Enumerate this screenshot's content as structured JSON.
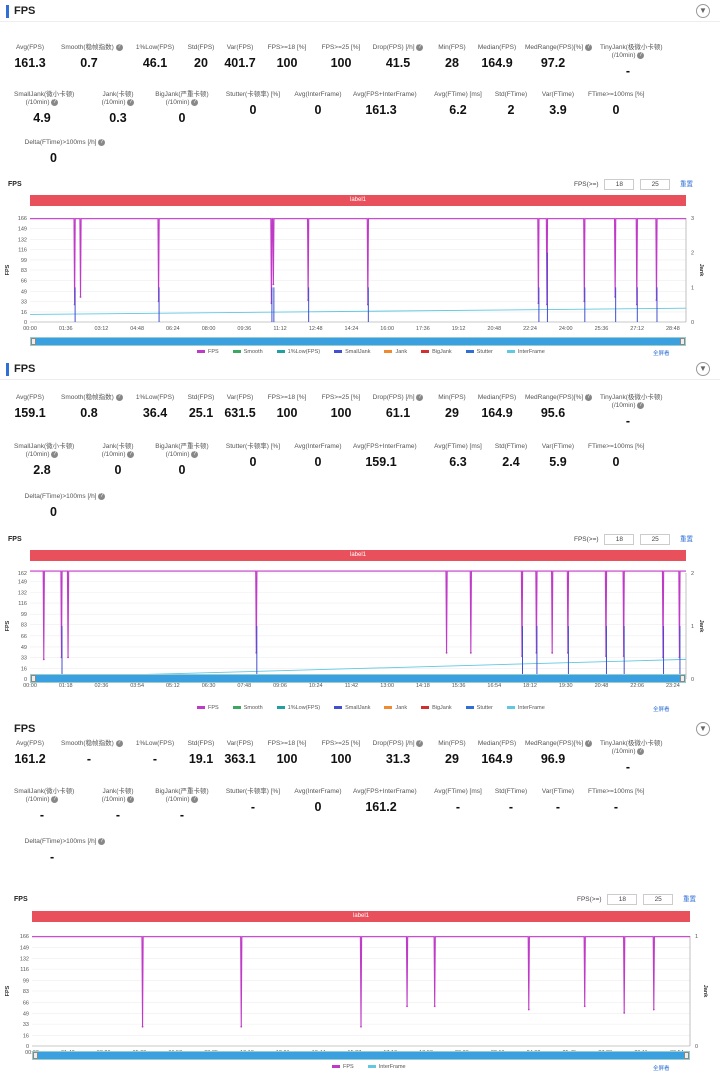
{
  "panels": [
    {
      "title": "FPS",
      "metrics_row1": [
        {
          "label": "Avg(FPS)",
          "value": "161.3"
        },
        {
          "label": "Smooth(稳帧指数)",
          "value": "0.7",
          "help": true
        },
        {
          "label": "1%Low(FPS)",
          "value": "46.1"
        },
        {
          "label": "Std(FPS)",
          "value": "20"
        },
        {
          "label": "Var(FPS)",
          "value": "401.7"
        },
        {
          "label": "FPS>=18 [%]",
          "value": "100"
        },
        {
          "label": "FPS>=25 [%]",
          "value": "100"
        },
        {
          "label": "Drop(FPS) [/h]",
          "value": "41.5",
          "help": true
        },
        {
          "label": "Min(FPS)",
          "value": "28"
        },
        {
          "label": "Median(FPS)",
          "value": "164.9"
        },
        {
          "label": "MedRange(FPS)[%]",
          "value": "97.2",
          "help": true
        },
        {
          "label": "TinyJank(极微小卡顿)\n(/10min)",
          "value": "-",
          "help": true
        }
      ],
      "metrics_row2": [
        {
          "label": "SmallJank(微小卡顿)\n(/10min)",
          "value": "4.9",
          "help": true
        },
        {
          "label": "Jank(卡顿)\n(/10min)",
          "value": "0.3",
          "help": true
        },
        {
          "label": "BigJank(严重卡顿)\n(/10min)",
          "value": "0",
          "help": true
        },
        {
          "label": "Stutter(卡顿率) [%]",
          "value": "0"
        },
        {
          "label": "Avg(InterFrame)",
          "value": "0"
        },
        {
          "label": "Avg(FPS+InterFrame)",
          "value": "161.3"
        },
        {
          "label": "Avg(FTime) [ms]",
          "value": "6.2"
        },
        {
          "label": "Std(FTime)",
          "value": "2"
        },
        {
          "label": "Var(FTime)",
          "value": "3.9"
        },
        {
          "label": "FTime>=100ms [%]",
          "value": "0"
        }
      ],
      "metrics_row3": [
        {
          "label": "Delta(FTime)>100ms [/h]",
          "value": "0",
          "help": true
        }
      ],
      "chart_title": "FPS",
      "threshold_label": "FPS(>=)",
      "threshold_values": [
        "18",
        "25"
      ],
      "reset_label": "重置",
      "band_label": "label1",
      "zoom_label": "全屏看",
      "legend": [
        "FPS",
        "Smooth",
        "1%Low(FPS)",
        "SmallJank",
        "Jank",
        "BigJank",
        "Stutter",
        "InterFrame"
      ]
    },
    {
      "title": "FPS",
      "metrics_row1": [
        {
          "label": "Avg(FPS)",
          "value": "159.1"
        },
        {
          "label": "Smooth(稳帧指数)",
          "value": "0.8",
          "help": true
        },
        {
          "label": "1%Low(FPS)",
          "value": "36.4"
        },
        {
          "label": "Std(FPS)",
          "value": "25.1"
        },
        {
          "label": "Var(FPS)",
          "value": "631.5"
        },
        {
          "label": "FPS>=18 [%]",
          "value": "100"
        },
        {
          "label": "FPS>=25 [%]",
          "value": "100"
        },
        {
          "label": "Drop(FPS) [/h]",
          "value": "61.1",
          "help": true
        },
        {
          "label": "Min(FPS)",
          "value": "29"
        },
        {
          "label": "Median(FPS)",
          "value": "164.9"
        },
        {
          "label": "MedRange(FPS)[%]",
          "value": "95.6",
          "help": true
        },
        {
          "label": "TinyJank(极微小卡顿)\n(/10min)",
          "value": "-",
          "help": true
        }
      ],
      "metrics_row2": [
        {
          "label": "SmallJank(微小卡顿)\n(/10min)",
          "value": "2.8",
          "help": true
        },
        {
          "label": "Jank(卡顿)\n(/10min)",
          "value": "0",
          "help": true
        },
        {
          "label": "BigJank(严重卡顿)\n(/10min)",
          "value": "0",
          "help": true
        },
        {
          "label": "Stutter(卡顿率) [%]",
          "value": "0"
        },
        {
          "label": "Avg(InterFrame)",
          "value": "0"
        },
        {
          "label": "Avg(FPS+InterFrame)",
          "value": "159.1"
        },
        {
          "label": "Avg(FTime) [ms]",
          "value": "6.3"
        },
        {
          "label": "Std(FTime)",
          "value": "2.4"
        },
        {
          "label": "Var(FTime)",
          "value": "5.9"
        },
        {
          "label": "FTime>=100ms [%]",
          "value": "0"
        }
      ],
      "metrics_row3": [
        {
          "label": "Delta(FTime)>100ms [/h]",
          "value": "0",
          "help": true
        }
      ],
      "chart_title": "FPS",
      "threshold_label": "FPS(>=)",
      "threshold_values": [
        "18",
        "25"
      ],
      "reset_label": "重置",
      "band_label": "label1",
      "zoom_label": "全屏看",
      "legend": [
        "FPS",
        "Smooth",
        "1%Low(FPS)",
        "SmallJank",
        "Jank",
        "BigJank",
        "Stutter",
        "InterFrame"
      ]
    },
    {
      "title": "FPS",
      "metrics_row1": [
        {
          "label": "Avg(FPS)",
          "value": "161.2"
        },
        {
          "label": "Smooth(稳帧指数)",
          "value": "-",
          "help": true
        },
        {
          "label": "1%Low(FPS)",
          "value": "-"
        },
        {
          "label": "Std(FPS)",
          "value": "19.1"
        },
        {
          "label": "Var(FPS)",
          "value": "363.1"
        },
        {
          "label": "FPS>=18 [%]",
          "value": "100"
        },
        {
          "label": "FPS>=25 [%]",
          "value": "100"
        },
        {
          "label": "Drop(FPS) [/h]",
          "value": "31.3",
          "help": true
        },
        {
          "label": "Min(FPS)",
          "value": "29"
        },
        {
          "label": "Median(FPS)",
          "value": "164.9"
        },
        {
          "label": "MedRange(FPS)[%]",
          "value": "96.9",
          "help": true
        },
        {
          "label": "TinyJank(极微小卡顿)\n(/10min)",
          "value": "-",
          "help": true
        }
      ],
      "metrics_row2": [
        {
          "label": "SmallJank(微小卡顿)\n(/10min)",
          "value": "-",
          "help": true
        },
        {
          "label": "Jank(卡顿)\n(/10min)",
          "value": "-",
          "help": true
        },
        {
          "label": "BigJank(严重卡顿)\n(/10min)",
          "value": "-",
          "help": true
        },
        {
          "label": "Stutter(卡顿率) [%]",
          "value": "-"
        },
        {
          "label": "Avg(InterFrame)",
          "value": "0"
        },
        {
          "label": "Avg(FPS+InterFrame)",
          "value": "161.2"
        },
        {
          "label": "Avg(FTime) [ms]",
          "value": "-"
        },
        {
          "label": "Std(FTime)",
          "value": "-"
        },
        {
          "label": "Var(FTime)",
          "value": "-"
        },
        {
          "label": "FTime>=100ms [%]",
          "value": "-"
        }
      ],
      "metrics_row3": [
        {
          "label": "Delta(FTime)>100ms [/h]",
          "value": "-",
          "help": true
        }
      ],
      "chart_title": "FPS",
      "threshold_label": "FPS(>=)",
      "threshold_values": [
        "18",
        "25"
      ],
      "reset_label": "重置",
      "band_label": "label1",
      "zoom_label": "全屏看",
      "legend": [
        "FPS",
        "InterFrame"
      ]
    }
  ],
  "colors": {
    "fps": "#c03ac8",
    "smooth": "#3aa860",
    "low1": "#20a0a0",
    "smalljank": "#4050d0",
    "jank": "#f08a30",
    "bigjank": "#d03030",
    "stutter": "#2f6fd6",
    "interframe": "#60c8e0",
    "band": "#e8505b",
    "accent": "#2f6fd6"
  },
  "chart_data": [
    {
      "type": "line",
      "title": "FPS",
      "ylabel": "FPS",
      "y2label": "Jank",
      "yticks": [
        "0",
        "16",
        "33",
        "49",
        "66",
        "83",
        "99",
        "116",
        "132",
        "149",
        "166"
      ],
      "y2ticks": [
        "0",
        "1",
        "2",
        "3"
      ],
      "xticks": [
        "00:00",
        "01:36",
        "03:12",
        "04:48",
        "06:24",
        "08:00",
        "09:36",
        "11:12",
        "12:48",
        "14:24",
        "16:00",
        "17:36",
        "19:12",
        "20:48",
        "22:24",
        "24:00",
        "25:36",
        "27:12",
        "28:48"
      ],
      "ylim": [
        0,
        166
      ],
      "y2lim": [
        0,
        3
      ],
      "baseline_fps": 164.9,
      "drops": [
        {
          "t": 0.068,
          "min": 28,
          "smalljank": 1
        },
        {
          "t": 0.077,
          "min": 40,
          "smalljank": 0
        },
        {
          "t": 0.196,
          "min": 33,
          "smalljank": 1
        },
        {
          "t": 0.368,
          "min": 30,
          "smalljank": 1
        },
        {
          "t": 0.371,
          "min": 60,
          "smalljank": 1
        },
        {
          "t": 0.424,
          "min": 35,
          "smalljank": 1
        },
        {
          "t": 0.515,
          "min": 28,
          "smalljank": 1
        },
        {
          "t": 0.775,
          "min": 30,
          "smalljank": 1
        },
        {
          "t": 0.788,
          "min": 28,
          "smalljank": 2
        },
        {
          "t": 0.845,
          "min": 33,
          "smalljank": 1
        },
        {
          "t": 0.892,
          "min": 40,
          "smalljank": 1
        },
        {
          "t": 0.925,
          "min": 28,
          "smalljank": 1
        },
        {
          "t": 0.955,
          "min": 35,
          "smalljank": 1
        }
      ],
      "interframe_trend": [
        12,
        22
      ]
    },
    {
      "type": "line",
      "title": "FPS",
      "ylabel": "FPS",
      "y2label": "Jank",
      "yticks": [
        "0",
        "16",
        "33",
        "49",
        "66",
        "83",
        "99",
        "116",
        "132",
        "149",
        "162"
      ],
      "y2ticks": [
        "0",
        "1",
        "2"
      ],
      "xticks": [
        "00:00",
        "01:18",
        "02:36",
        "03:54",
        "05:12",
        "06:30",
        "07:48",
        "09:06",
        "10:24",
        "11:42",
        "13:00",
        "14:18",
        "15:36",
        "16:54",
        "18:12",
        "19:30",
        "20:48",
        "22:06",
        "23:24"
      ],
      "ylim": [
        0,
        162
      ],
      "y2lim": [
        0,
        2
      ],
      "baseline_fps": 164.9,
      "drops": [
        {
          "t": 0.021,
          "min": 30,
          "smalljank": 0
        },
        {
          "t": 0.048,
          "min": 33,
          "smalljank": 1
        },
        {
          "t": 0.058,
          "min": 33,
          "smalljank": 0
        },
        {
          "t": 0.345,
          "min": 40,
          "smalljank": 1
        },
        {
          "t": 0.635,
          "min": 40,
          "smalljank": 0
        },
        {
          "t": 0.672,
          "min": 40,
          "smalljank": 0
        },
        {
          "t": 0.75,
          "min": 35,
          "smalljank": 1
        },
        {
          "t": 0.772,
          "min": 40,
          "smalljank": 1
        },
        {
          "t": 0.796,
          "min": 40,
          "smalljank": 0
        },
        {
          "t": 0.82,
          "min": 40,
          "smalljank": 1
        },
        {
          "t": 0.878,
          "min": 35,
          "smalljank": 1
        },
        {
          "t": 0.905,
          "min": 35,
          "smalljank": 1
        },
        {
          "t": 0.965,
          "min": 33,
          "smalljank": 1
        },
        {
          "t": 0.99,
          "min": 33,
          "smalljank": 1
        }
      ],
      "interframe_trend": [
        2,
        30
      ]
    },
    {
      "type": "line",
      "title": "FPS",
      "ylabel": "FPS",
      "y2label": "Jank",
      "yticks": [
        "0",
        "16",
        "33",
        "49",
        "66",
        "83",
        "99",
        "116",
        "132",
        "149",
        "166"
      ],
      "y2ticks": [
        "0",
        "1"
      ],
      "xticks": [
        "00:00",
        "01:43",
        "03:26",
        "05:09",
        "06:52",
        "08:35",
        "10:18",
        "12:01",
        "13:44",
        "15:27",
        "17:10",
        "18:53",
        "20:36",
        "22:19",
        "24:02",
        "25:45",
        "27:28",
        "29:11",
        "30:54"
      ],
      "ylim": [
        0,
        166
      ],
      "y2lim": [
        0,
        1
      ],
      "baseline_fps": 164.9,
      "drops": [
        {
          "t": 0.168,
          "min": 29,
          "smalljank": 0
        },
        {
          "t": 0.318,
          "min": 29,
          "smalljank": 0
        },
        {
          "t": 0.5,
          "min": 29,
          "smalljank": 0
        },
        {
          "t": 0.57,
          "min": 60,
          "smalljank": 0
        },
        {
          "t": 0.612,
          "min": 60,
          "smalljank": 0
        },
        {
          "t": 0.755,
          "min": 55,
          "smalljank": 0
        },
        {
          "t": 0.84,
          "min": 60,
          "smalljank": 0
        },
        {
          "t": 0.9,
          "min": 50,
          "smalljank": 0
        },
        {
          "t": 0.945,
          "min": 55,
          "smalljank": 0
        }
      ],
      "interframe_trend": [
        0,
        0
      ]
    }
  ]
}
